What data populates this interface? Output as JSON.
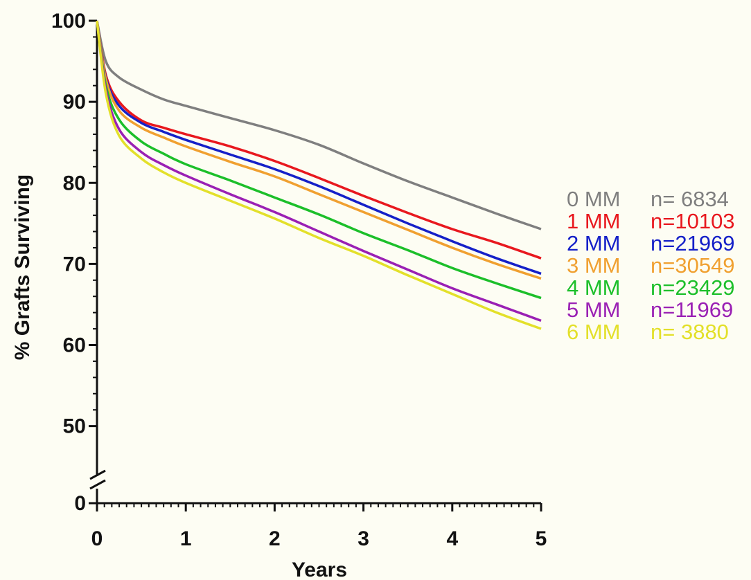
{
  "chart_data": {
    "type": "line",
    "xlabel": "Years",
    "ylabel": "% Grafts Surviving",
    "xlim": [
      0,
      5
    ],
    "ylim": [
      0,
      100
    ],
    "y_axis_break": "between 0 and 50",
    "x_ticks": [
      "0",
      "1",
      "2",
      "3",
      "4",
      "5"
    ],
    "y_ticks": [
      "0",
      "50",
      "60",
      "70",
      "80",
      "90",
      "100"
    ],
    "grid": false,
    "legend_position": "right",
    "x": [
      0,
      0.1,
      0.25,
      0.5,
      0.75,
      1,
      1.5,
      2,
      2.5,
      3,
      3.5,
      4,
      4.5,
      5
    ],
    "series": [
      {
        "name": "0 MM",
        "n_label": "n=  6834",
        "color": "#7f7f7f",
        "values": [
          100,
          95,
          93,
          91.5,
          90.3,
          89.5,
          88,
          86.5,
          84.7,
          82.4,
          80.2,
          78.2,
          76.2,
          74.3
        ]
      },
      {
        "name": "1 MM",
        "n_label": "n=10103",
        "color": "#e8181e",
        "values": [
          100,
          93.3,
          90,
          87.7,
          86.8,
          86,
          84.5,
          82.7,
          80.6,
          78.4,
          76.3,
          74.3,
          72.6,
          70.7
        ]
      },
      {
        "name": "2 MM",
        "n_label": "n=21969",
        "color": "#1520c8",
        "values": [
          100,
          93,
          89.5,
          87.4,
          86.3,
          85.3,
          83.5,
          81.7,
          79.6,
          77.3,
          75,
          72.8,
          70.7,
          68.8
        ]
      },
      {
        "name": "3 MM",
        "n_label": "n=30549",
        "color": "#f0a030",
        "values": [
          100,
          92.8,
          88.9,
          86.8,
          85.6,
          84.5,
          82.6,
          80.8,
          78.6,
          76.4,
          74.2,
          72,
          70,
          68.2
        ]
      },
      {
        "name": "4 MM",
        "n_label": "n=23429",
        "color": "#1cbf2a",
        "values": [
          100,
          92,
          87.8,
          85.1,
          83.6,
          82.3,
          80.3,
          78.2,
          76.1,
          73.8,
          71.7,
          69.5,
          67.6,
          65.8
        ]
      },
      {
        "name": "5 MM",
        "n_label": "n=11969",
        "color": "#9a20b4",
        "values": [
          100,
          91.5,
          86.6,
          83.8,
          82.2,
          80.9,
          78.6,
          76.4,
          74,
          71.6,
          69.3,
          67,
          65,
          63
        ]
      },
      {
        "name": "6 MM",
        "n_label": "n=  3880",
        "color": "#e3e02a",
        "values": [
          100,
          91,
          85.8,
          83,
          81.3,
          80,
          77.8,
          75.6,
          73.2,
          71,
          68.6,
          66.3,
          64,
          62
        ]
      }
    ]
  }
}
